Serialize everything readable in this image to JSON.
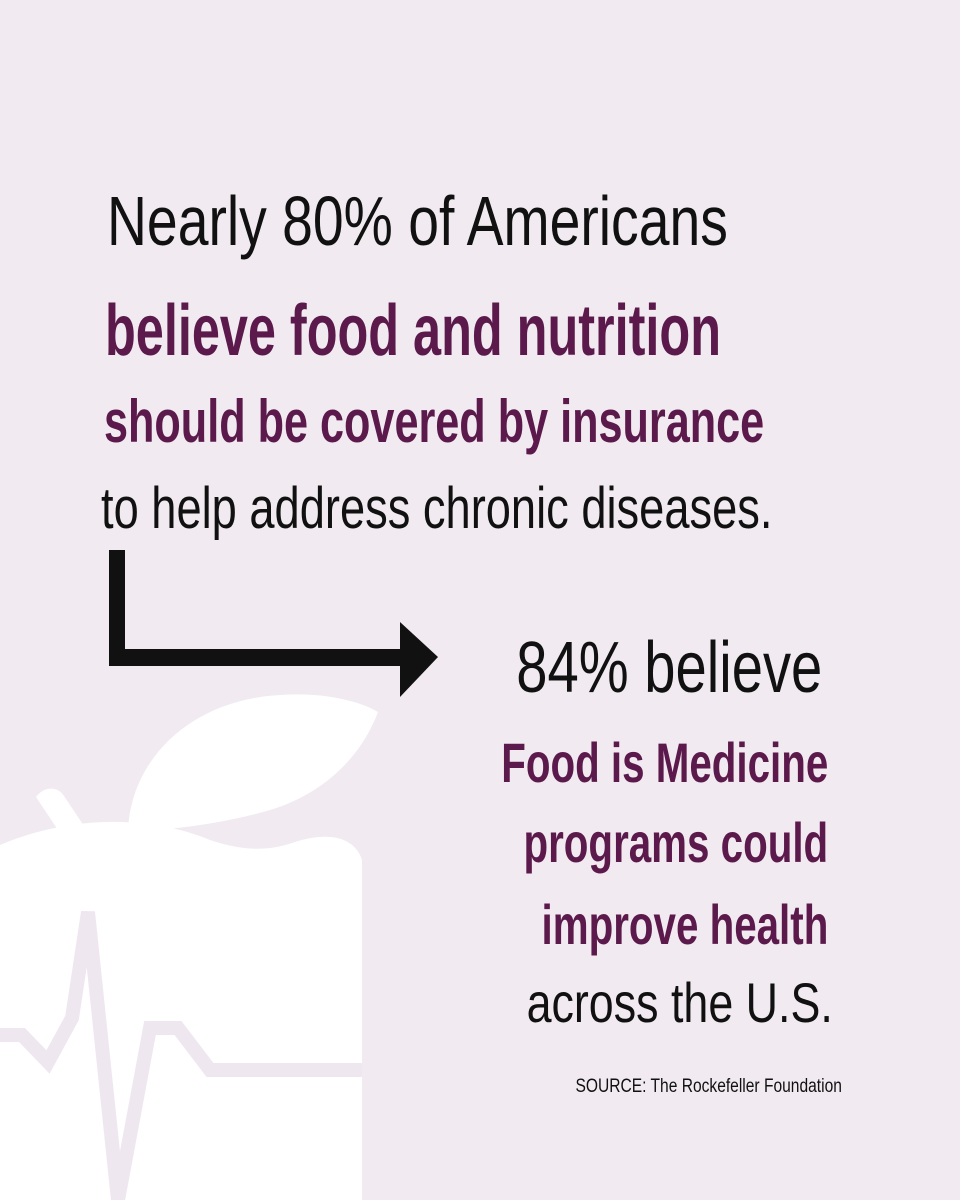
{
  "colors": {
    "background": "#f1ebf1",
    "text_dark": "#111111",
    "accent_purple": "#5b1a4b",
    "apple_shape": "#ffffff",
    "heartbeat_line": "#efe7f0",
    "arrow": "#111111"
  },
  "icons": {
    "apple": "apple-icon",
    "heartbeat": "heartbeat-line-icon",
    "arrow": "elbow-arrow-icon"
  },
  "headline": {
    "line1": "Nearly 80% of Americans",
    "line2": "believe food and nutrition",
    "line3": "should be covered by insurance",
    "line4": "to help address chronic diseases."
  },
  "stat": {
    "line1": "84% believe",
    "line2": "Food is Medicine",
    "line3": "programs could",
    "line4": "improve health",
    "line5": "across the U.S."
  },
  "source": "SOURCE: The Rockefeller Foundation"
}
